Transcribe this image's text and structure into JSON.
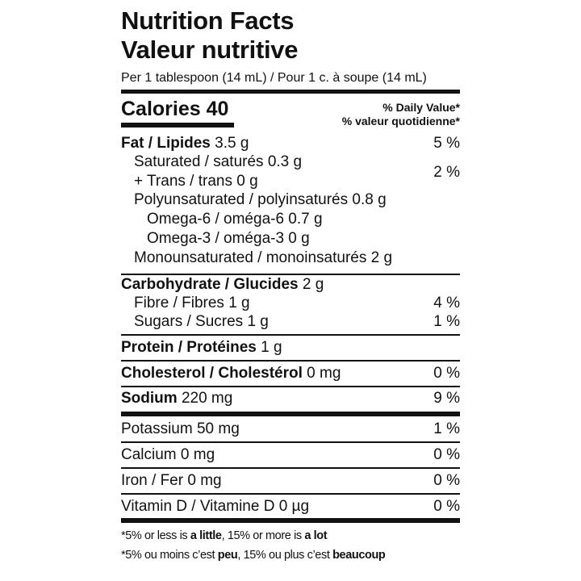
{
  "title_en": "Nutrition Facts",
  "title_fr": "Valeur nutritive",
  "serving": "Per 1 tablespoon (14 mL) / Pour 1 c. à soupe (14 mL)",
  "calories": "Calories 40",
  "dv_en": "% Daily Value*",
  "dv_fr": "% valeur quotidienne*",
  "rows": [
    {
      "bold": "Fat / Lipides",
      "value": " 3.5 g",
      "pct": "5 %"
    },
    {
      "bold": "",
      "value": "Saturated / saturés 0.3 g",
      "pct": ""
    },
    {
      "bold": "",
      "value": "+ Trans / trans 0 g",
      "pct": ""
    },
    {
      "bold": "",
      "value": "Polyunsaturated / polyinsaturés 0.8 g",
      "pct": ""
    },
    {
      "bold": "",
      "value": "Omega-6 / oméga-6 0.7 g",
      "pct": ""
    },
    {
      "bold": "",
      "value": "Omega-3 / oméga-3 0 g",
      "pct": ""
    },
    {
      "bold": "",
      "value": "Monounsaturated / monoinsaturés 2 g",
      "pct": ""
    },
    {
      "bold": "Carbohydrate / Glucides",
      "value": " 2 g",
      "pct": ""
    },
    {
      "bold": "",
      "value": "Fibre / Fibres 1 g",
      "pct": "4 %"
    },
    {
      "bold": "",
      "value": "Sugars / Sucres 1 g",
      "pct": "1 %"
    },
    {
      "bold": "Protein / Protéines",
      "value": " 1 g",
      "pct": ""
    },
    {
      "bold": "Cholesterol / Cholestérol",
      "value": " 0 mg",
      "pct": "0 %"
    },
    {
      "bold": "Sodium",
      "value": " 220 mg",
      "pct": "9 %"
    },
    {
      "bold": "",
      "value": "Potassium 50 mg",
      "pct": "1 %"
    },
    {
      "bold": "",
      "value": "Calcium 0 mg",
      "pct": "0 %"
    },
    {
      "bold": "",
      "value": "Iron / Fer 0 mg",
      "pct": "0 %"
    },
    {
      "bold": "",
      "value": "Vitamin D / Vitamine D 0 µg",
      "pct": "0 %"
    }
  ],
  "sat_trans_pct": "2 %",
  "footnote_en": {
    "a": "*5% or less is ",
    "b": "a little",
    "c": ", 15% or more is ",
    "d": "a lot"
  },
  "footnote_fr": {
    "a": "*5% ou moins c’est ",
    "b": "peu",
    "c": ", 15% ou plus c’est ",
    "d": "beaucoup"
  }
}
